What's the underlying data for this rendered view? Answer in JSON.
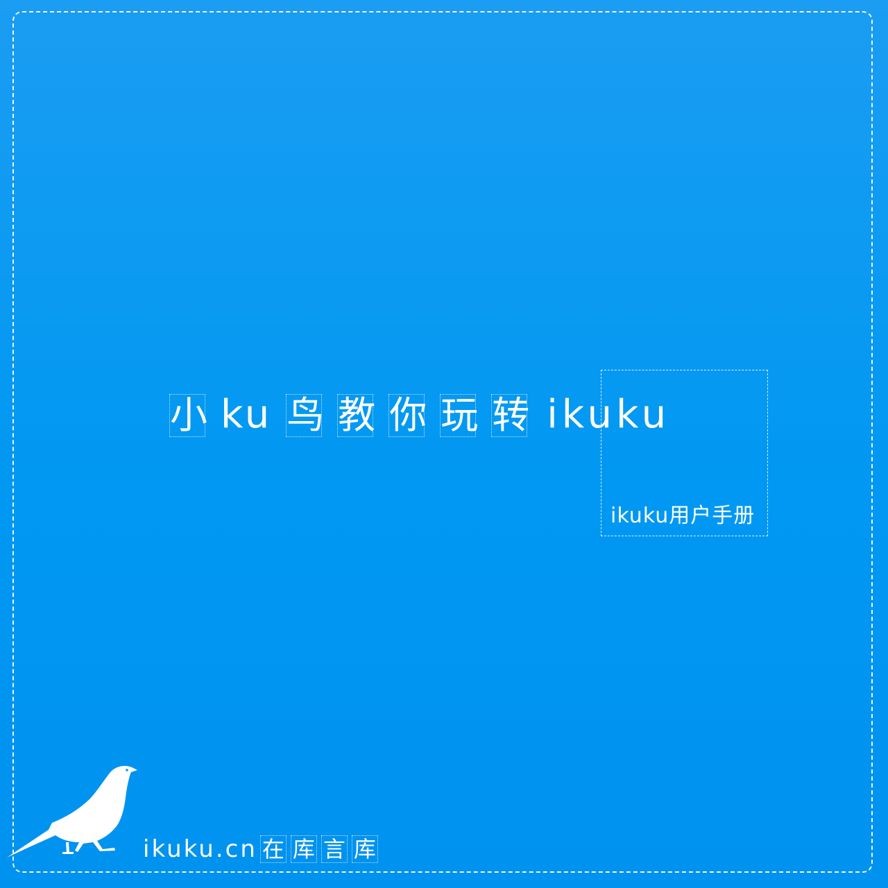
{
  "colors": {
    "background": "#0098f2",
    "foreground": "#ffffff"
  },
  "title": {
    "c1": "小",
    "latin1": "ku",
    "c2": "鸟",
    "c3": "教",
    "c4": "你",
    "c5": "玩",
    "c6": "转",
    "latin2": "ikuku"
  },
  "subtitle": "ikuku用户手册",
  "footer": {
    "url": "ikuku.cn",
    "c1": "在",
    "c2": "库",
    "c3": "言",
    "c4": "库"
  },
  "icons": {
    "logo": "bird-silhouette-icon"
  }
}
